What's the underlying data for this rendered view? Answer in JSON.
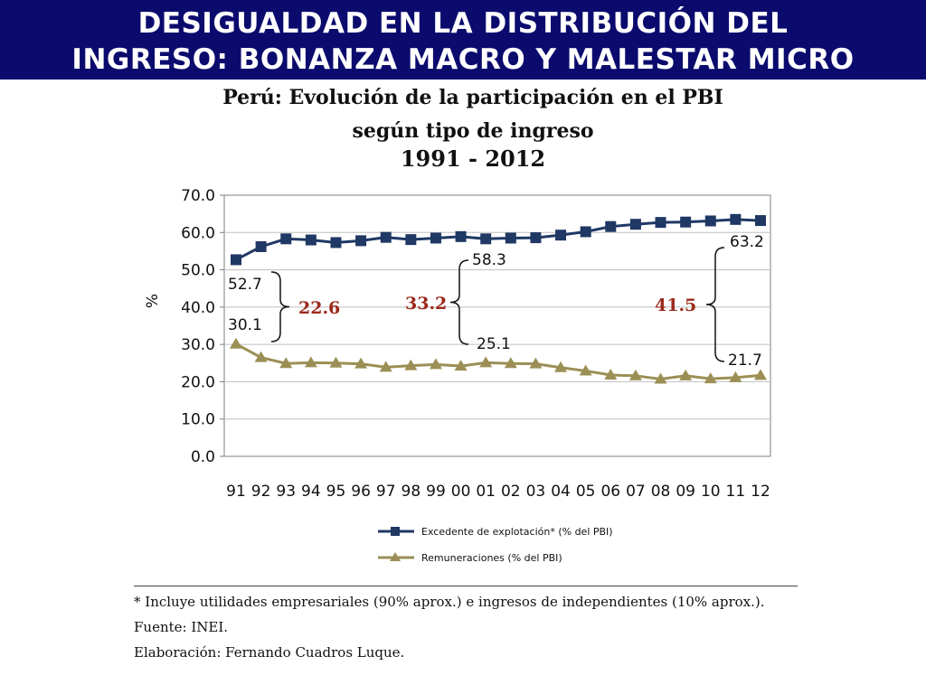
{
  "banner": {
    "line1": "DESIGUALDAD EN LA DISTRIBUCIÓN DEL",
    "line2": "INGRESO: BONANZA MACRO Y MALESTAR MICRO"
  },
  "chart_data": {
    "type": "line",
    "title_lines": [
      "Perú: Evolución de la participación en el PBI",
      "según tipo de ingreso",
      "1991 - 2012"
    ],
    "ylabel": "%",
    "xlabel": "",
    "ylim": [
      0,
      70
    ],
    "yticks": [
      "0.0",
      "10.0",
      "20.0",
      "30.0",
      "40.0",
      "50.0",
      "60.0",
      "70.0"
    ],
    "categories": [
      "91",
      "92",
      "93",
      "94",
      "95",
      "96",
      "97",
      "98",
      "99",
      "00",
      "01",
      "02",
      "03",
      "04",
      "05",
      "06",
      "07",
      "08",
      "09",
      "10",
      "11",
      "12"
    ],
    "grid": true,
    "legend_position": "bottom",
    "series": [
      {
        "name": "Excedente de explotación* (% del PBI)",
        "color": "#1f3864",
        "marker": "square",
        "values": [
          52.7,
          56.2,
          58.3,
          58.0,
          57.3,
          57.8,
          58.7,
          58.1,
          58.5,
          58.9,
          58.3,
          58.5,
          58.6,
          59.3,
          60.2,
          61.6,
          62.2,
          62.7,
          62.8,
          63.1,
          63.5,
          63.2
        ]
      },
      {
        "name": "Remuneraciones (% del PBI)",
        "color": "#9b8f55",
        "marker": "triangle",
        "values": [
          30.1,
          26.5,
          24.9,
          25.1,
          25.0,
          24.8,
          23.9,
          24.3,
          24.6,
          24.2,
          25.1,
          24.9,
          24.8,
          23.8,
          22.9,
          21.8,
          21.6,
          20.7,
          21.6,
          20.8,
          21.1,
          21.7
        ]
      }
    ],
    "annotations": {
      "start_top": "52.7",
      "start_bottom": "30.1",
      "start_gap": "22.6",
      "mid_top": "58.3",
      "mid_bottom": "25.1",
      "mid_gap": "33.2",
      "end_top": "63.2",
      "end_bottom": "21.7",
      "end_gap": "41.5"
    }
  },
  "notes": {
    "line1": "* Incluye utilidades empresariales (90% aprox.) e ingresos de independientes (10% aprox.).",
    "line2": "Fuente: INEI.",
    "line3": "Elaboración: Fernando Cuadros Luque."
  }
}
